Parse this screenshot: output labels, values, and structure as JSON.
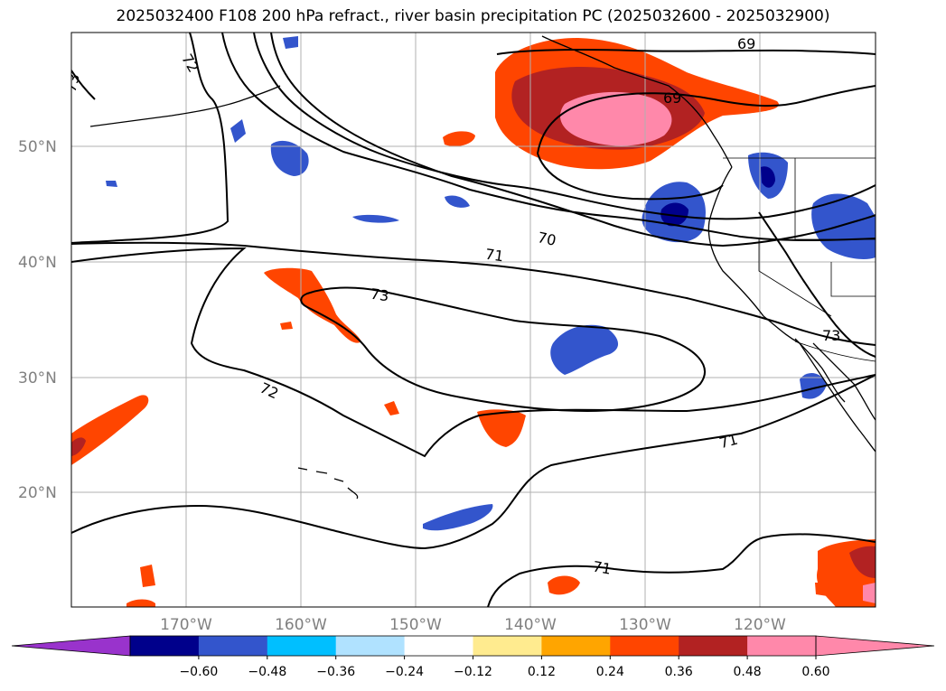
{
  "title": "2025032400 F108 200 hPa refract., river basin precipitation PC (2025032600 - 2025032900)",
  "lat_labels": [
    "50°N",
    "40°N",
    "30°N",
    "20°N"
  ],
  "lon_labels": [
    "170°W",
    "160°W",
    "150°W",
    "140°W",
    "130°W",
    "120°W"
  ],
  "contour_labels": [
    "73",
    "72",
    "69",
    "69",
    "70",
    "71",
    "73",
    "72",
    "71",
    "73",
    "71"
  ],
  "colorbar": {
    "ticks": [
      "−0.60",
      "−0.48",
      "−0.36",
      "−0.24",
      "−0.12",
      "0.12",
      "0.24",
      "0.36",
      "0.48",
      "0.60"
    ],
    "colors": {
      "below": "#9933cc",
      "levels": [
        "#00008b",
        "#3355cc",
        "#00bfff",
        "#b0e2ff",
        "#ffffff",
        "#ffeb8f",
        "#ffa500",
        "#ff4500",
        "#b22222",
        "#ff88aa"
      ],
      "above": "#ff88aa"
    }
  }
}
